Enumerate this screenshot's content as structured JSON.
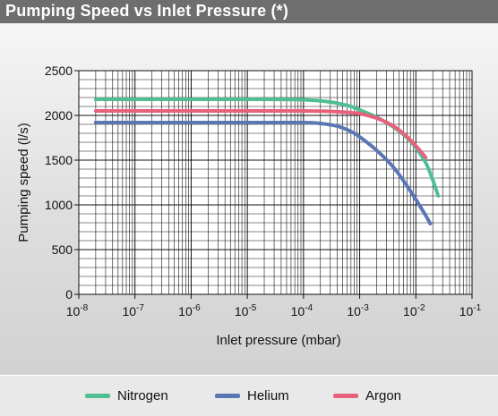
{
  "header": {
    "title": "Pumping Speed vs Inlet Pressure (*)"
  },
  "colors": {
    "nitrogen": "#4fbf93",
    "helium": "#5a77b4",
    "argon": "#e8607c",
    "grid": "#111111",
    "header_bg": "#6e6e6e"
  },
  "chart_data": {
    "type": "line",
    "xlabel": "Inlet pressure (mbar)",
    "ylabel": "Pumping speed (l/s)",
    "x_scale": "log",
    "xlim": [
      1e-08,
      0.1
    ],
    "ylim": [
      0,
      2500
    ],
    "x_ticks": [
      {
        "base": "10",
        "exp": "-8"
      },
      {
        "base": "10",
        "exp": "-7"
      },
      {
        "base": "10",
        "exp": "-6"
      },
      {
        "base": "10",
        "exp": "-5"
      },
      {
        "base": "10",
        "exp": "-4"
      },
      {
        "base": "10",
        "exp": "-3"
      },
      {
        "base": "10",
        "exp": "-2"
      },
      {
        "base": "10",
        "exp": "-1"
      }
    ],
    "y_ticks": [
      "0",
      "500",
      "1000",
      "1500",
      "2000",
      "2500"
    ],
    "grid": true,
    "legend_position": "bottom",
    "series": [
      {
        "name": "Nitrogen",
        "color_key": "nitrogen",
        "x": [
          2e-08,
          1e-07,
          1e-06,
          1e-05,
          0.0001,
          0.0003,
          0.0007,
          0.001,
          0.002,
          0.004,
          0.007,
          0.01,
          0.015,
          0.02,
          0.025
        ],
        "y": [
          2180,
          2180,
          2180,
          2180,
          2175,
          2150,
          2100,
          2060,
          1980,
          1870,
          1750,
          1640,
          1470,
          1280,
          1100
        ]
      },
      {
        "name": "Helium",
        "color_key": "helium",
        "x": [
          2e-08,
          1e-07,
          1e-06,
          1e-05,
          0.0001,
          0.0002,
          0.0004,
          0.0007,
          0.001,
          0.002,
          0.004,
          0.007,
          0.01,
          0.015,
          0.018
        ],
        "y": [
          1920,
          1920,
          1920,
          1920,
          1920,
          1910,
          1880,
          1820,
          1760,
          1610,
          1420,
          1210,
          1060,
          880,
          790
        ]
      },
      {
        "name": "Argon",
        "color_key": "argon",
        "x": [
          2e-08,
          1e-07,
          1e-06,
          1e-05,
          0.0001,
          0.0003,
          0.0007,
          0.001,
          0.002,
          0.004,
          0.007,
          0.01,
          0.015
        ],
        "y": [
          2050,
          2050,
          2050,
          2050,
          2050,
          2045,
          2030,
          2020,
          1970,
          1880,
          1760,
          1660,
          1530
        ]
      }
    ]
  }
}
